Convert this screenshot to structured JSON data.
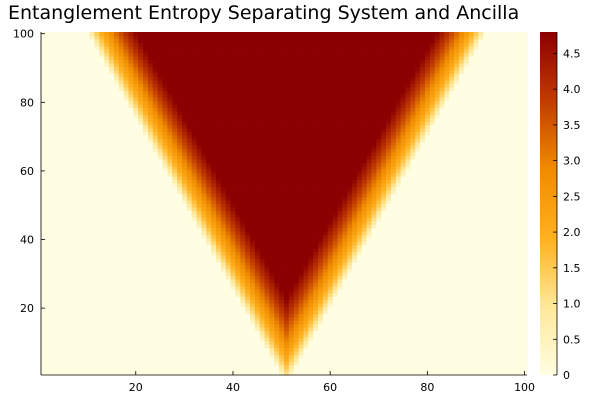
{
  "chart_data": {
    "type": "heatmap",
    "title": "Entanglement Entropy Separating System and Ancilla",
    "xlabel": "",
    "ylabel": "",
    "x_range": [
      1,
      100
    ],
    "y_range": [
      1,
      100
    ],
    "x_ticks": [
      20,
      40,
      60,
      80,
      100
    ],
    "y_ticks": [
      20,
      40,
      60,
      80,
      100
    ],
    "x_tick_labels": [
      "20",
      "40",
      "60",
      "80",
      "100"
    ],
    "y_tick_labels": [
      "20",
      "40",
      "60",
      "80",
      "100"
    ],
    "grid": false,
    "colorbar": {
      "range": [
        0,
        4.8
      ],
      "ticks": [
        0,
        0.5,
        1.0,
        1.5,
        2.0,
        2.5,
        3.0,
        3.5,
        4.0,
        4.5
      ],
      "tick_labels": [
        "0",
        "0.5",
        "1.0",
        "1.5",
        "2.0",
        "2.5",
        "3.0",
        "3.5",
        "4.0",
        "4.5"
      ],
      "colors": [
        "#fffee2",
        "#ffe898",
        "#ffb01e",
        "#f08c00",
        "#c03c00",
        "#8b0000"
      ]
    },
    "light_cone": {
      "apex_x": 51,
      "apex_y": 1,
      "edge_spread_per_row": 0.4,
      "max_value": 4.8,
      "saturation_depth_columns": 10
    }
  }
}
